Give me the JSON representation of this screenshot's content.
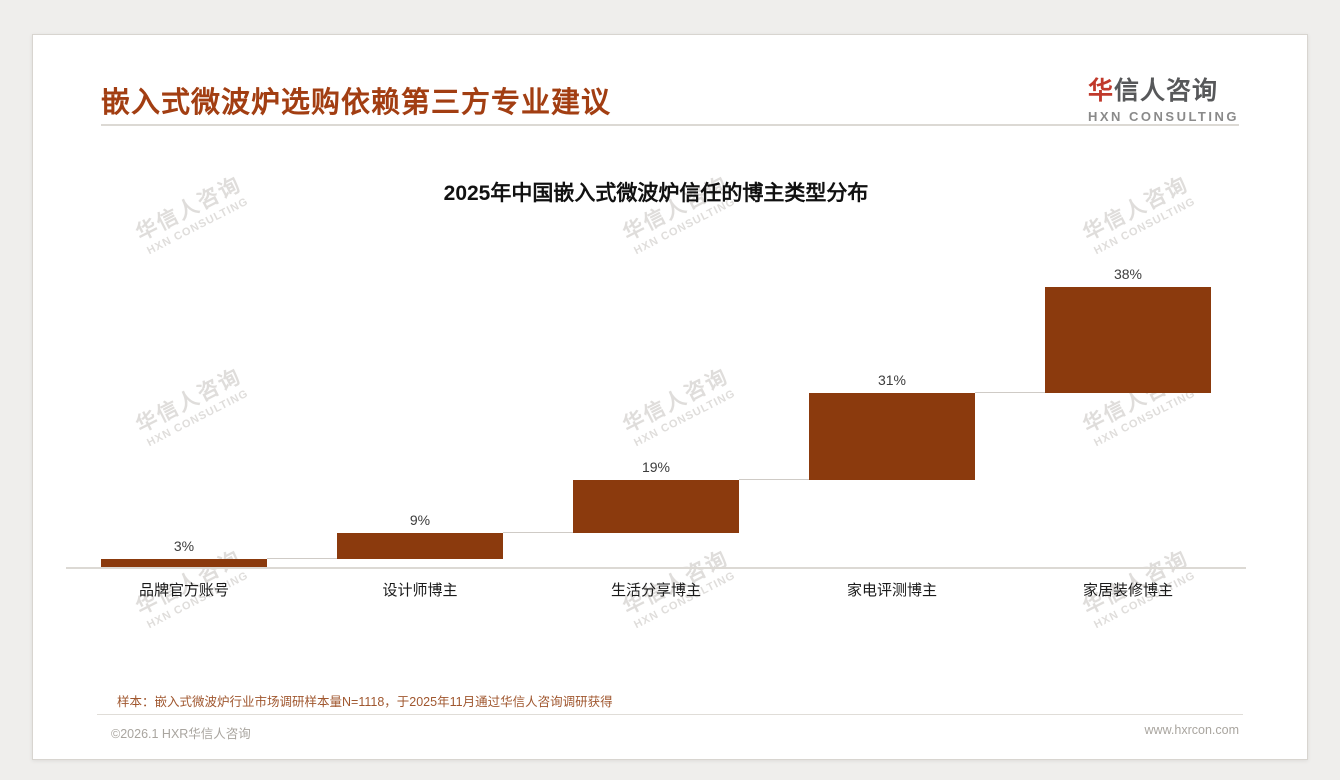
{
  "page": {
    "title": "嵌入式微波炉选购依赖第三方专业建议",
    "logo": {
      "cn_first": "华",
      "cn_rest": "信人咨询",
      "en": "HXN CONSULTING"
    },
    "watermark": {
      "cn": "华信人咨询",
      "en": "HXN CONSULTING"
    },
    "note": "样本：嵌入式微波炉行业市场调研样本量N=1118，于2025年11月通过华信人咨询调研获得",
    "footer": {
      "copyright": "©2026.1 HXR华信人咨询",
      "website": "www.hxrcon.com"
    }
  },
  "colors": {
    "title": "#a23e12",
    "bar": "#8b3a0d",
    "connector": "#cfcbc6",
    "note": "#a0572f",
    "logo_red": "#c0392b"
  },
  "chart_data": {
    "type": "bar",
    "subtype": "waterfall",
    "title": "2025年中国嵌入式微波炉信任的博主类型分布",
    "categories": [
      "品牌官方账号",
      "设计师博主",
      "生活分享博主",
      "家电评测博主",
      "家居装修博主"
    ],
    "values": [
      3,
      9,
      19,
      31,
      38
    ],
    "labels": [
      "3%",
      "9%",
      "19%",
      "31%",
      "38%"
    ],
    "cumulative_starts": [
      0,
      3,
      12,
      31,
      62
    ],
    "total": 100,
    "unit": "%",
    "ylim": [
      0,
      100
    ],
    "xlabel": "",
    "ylabel": "",
    "grid": false,
    "legend": "none"
  }
}
